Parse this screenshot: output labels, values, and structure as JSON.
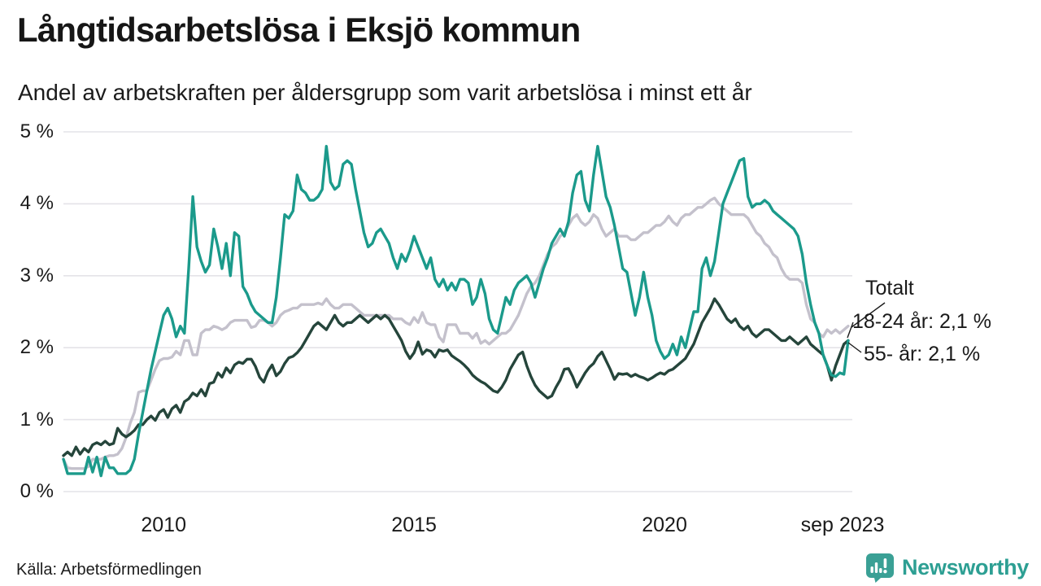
{
  "page": {
    "title": "Långtidsarbetslösa i Eksjö kommun",
    "subtitle": "Andel av arbetskraften per åldersgrupp som varit arbetslösa i minst ett år",
    "source": "Källa: Arbetsförmedlingen",
    "logo_text": "Newsworthy"
  },
  "colors": {
    "accent_teal": "#1b9a8b",
    "total_gray": "#c4c1cc",
    "older_dark": "#25453b",
    "grid": "#e4e3e8",
    "logo_teal": "#2d9f93"
  },
  "chart_data": {
    "type": "line",
    "title": "Långtidsarbetslösa i Eksjö kommun",
    "subtitle": "Andel av arbetskraften per åldersgrupp som varit arbetslösa i minst ett år",
    "x_start_year": 2008.0,
    "x_step_years": 0.08333,
    "x_end_label_year": 2023.667,
    "xlim": [
      2008.0,
      2023.75
    ],
    "ylim": [
      0,
      5
    ],
    "grid": true,
    "y_ticks": [
      "0 %",
      "1 %",
      "2 %",
      "3 %",
      "4 %",
      "5 %"
    ],
    "x_ticks": [
      {
        "label": "2010",
        "year": 2010
      },
      {
        "label": "2015",
        "year": 2015
      },
      {
        "label": "2020",
        "year": 2020
      },
      {
        "label": "sep 2023",
        "year": 2023.667
      }
    ],
    "annotations": [
      {
        "text": "Totalt",
        "series": "totalt"
      },
      {
        "text": "18-24 år: 2,1 %",
        "series": "1824"
      },
      {
        "text": "55- år: 2,1 %",
        "series": "55"
      }
    ],
    "series": [
      {
        "key": "totalt",
        "name": "Totalt",
        "color": "#c4c1cc",
        "end_value_pct": 2.3,
        "values": [
          0.45,
          0.33,
          0.32,
          0.32,
          0.32,
          0.32,
          0.35,
          0.45,
          0.45,
          0.45,
          0.48,
          0.5,
          0.5,
          0.52,
          0.6,
          0.75,
          0.95,
          1.1,
          1.38,
          1.4,
          1.4,
          1.55,
          1.7,
          1.82,
          1.85,
          1.85,
          1.87,
          1.95,
          1.9,
          2.1,
          2.1,
          1.9,
          1.9,
          2.2,
          2.25,
          2.25,
          2.3,
          2.28,
          2.25,
          2.28,
          2.35,
          2.38,
          2.38,
          2.38,
          2.38,
          2.28,
          2.3,
          2.38,
          2.38,
          2.35,
          2.3,
          2.35,
          2.45,
          2.5,
          2.52,
          2.55,
          2.55,
          2.6,
          2.6,
          2.6,
          2.6,
          2.62,
          2.6,
          2.68,
          2.6,
          2.55,
          2.55,
          2.6,
          2.6,
          2.6,
          2.55,
          2.5,
          2.45,
          2.45,
          2.45,
          2.45,
          2.45,
          2.45,
          2.45,
          2.4,
          2.4,
          2.4,
          2.35,
          2.32,
          2.42,
          2.35,
          2.49,
          2.35,
          2.32,
          2.32,
          2.15,
          2.08,
          2.32,
          2.32,
          2.32,
          2.2,
          2.2,
          2.2,
          2.13,
          2.2,
          2.06,
          2.1,
          2.05,
          2.1,
          2.15,
          2.2,
          2.2,
          2.25,
          2.35,
          2.45,
          2.6,
          2.75,
          2.85,
          2.9,
          3.0,
          3.15,
          3.3,
          3.4,
          3.45,
          3.55,
          3.6,
          3.7,
          3.8,
          3.85,
          3.75,
          3.7,
          3.75,
          3.85,
          3.8,
          3.65,
          3.55,
          3.6,
          3.65,
          3.55,
          3.55,
          3.55,
          3.5,
          3.5,
          3.55,
          3.6,
          3.6,
          3.65,
          3.7,
          3.7,
          3.75,
          3.83,
          3.75,
          3.7,
          3.8,
          3.85,
          3.85,
          3.9,
          3.95,
          3.95,
          4.0,
          4.05,
          4.08,
          4.0,
          3.95,
          3.9,
          3.85,
          3.85,
          3.85,
          3.85,
          3.8,
          3.7,
          3.6,
          3.55,
          3.45,
          3.4,
          3.3,
          3.25,
          3.1,
          3.0,
          2.95,
          2.95,
          2.95,
          2.9,
          2.6,
          2.4,
          2.35,
          2.2,
          2.15,
          2.25,
          2.2,
          2.25,
          2.2,
          2.25,
          2.3
        ]
      },
      {
        "key": "55",
        "name": "55- år",
        "color": "#25453b",
        "end_value_pct": 2.1,
        "values": [
          0.5,
          0.55,
          0.5,
          0.62,
          0.52,
          0.6,
          0.55,
          0.65,
          0.68,
          0.65,
          0.7,
          0.65,
          0.67,
          0.88,
          0.8,
          0.76,
          0.8,
          0.85,
          0.93,
          0.93,
          1.0,
          1.05,
          0.99,
          1.1,
          1.14,
          1.03,
          1.15,
          1.2,
          1.1,
          1.25,
          1.29,
          1.37,
          1.33,
          1.42,
          1.33,
          1.5,
          1.52,
          1.65,
          1.59,
          1.72,
          1.65,
          1.76,
          1.8,
          1.78,
          1.84,
          1.84,
          1.74,
          1.59,
          1.52,
          1.67,
          1.76,
          1.61,
          1.67,
          1.78,
          1.86,
          1.88,
          1.93,
          2.0,
          2.1,
          2.2,
          2.3,
          2.35,
          2.3,
          2.25,
          2.35,
          2.45,
          2.35,
          2.3,
          2.35,
          2.35,
          2.4,
          2.45,
          2.4,
          2.35,
          2.4,
          2.45,
          2.4,
          2.45,
          2.4,
          2.3,
          2.2,
          2.1,
          1.95,
          1.85,
          1.93,
          2.08,
          1.91,
          1.97,
          1.95,
          1.87,
          1.97,
          1.95,
          1.97,
          1.89,
          1.85,
          1.81,
          1.76,
          1.7,
          1.62,
          1.57,
          1.53,
          1.5,
          1.45,
          1.4,
          1.38,
          1.45,
          1.55,
          1.7,
          1.8,
          1.9,
          1.94,
          1.75,
          1.6,
          1.48,
          1.4,
          1.35,
          1.3,
          1.33,
          1.45,
          1.55,
          1.7,
          1.71,
          1.6,
          1.45,
          1.55,
          1.65,
          1.73,
          1.78,
          1.88,
          1.94,
          1.82,
          1.7,
          1.56,
          1.64,
          1.63,
          1.64,
          1.6,
          1.63,
          1.6,
          1.58,
          1.55,
          1.58,
          1.62,
          1.65,
          1.63,
          1.68,
          1.7,
          1.75,
          1.8,
          1.85,
          1.95,
          2.05,
          2.2,
          2.35,
          2.45,
          2.55,
          2.68,
          2.6,
          2.5,
          2.4,
          2.35,
          2.4,
          2.3,
          2.25,
          2.3,
          2.2,
          2.15,
          2.2,
          2.25,
          2.25,
          2.2,
          2.15,
          2.1,
          2.1,
          2.15,
          2.1,
          2.05,
          2.1,
          2.15,
          2.05,
          2.0,
          1.95,
          1.9,
          1.75,
          1.55,
          1.75,
          1.9,
          2.05,
          2.1
        ]
      },
      {
        "key": "1824",
        "name": "18-24 år",
        "color": "#1b9a8b",
        "end_value_pct": 2.1,
        "values": [
          0.45,
          0.25,
          0.25,
          0.25,
          0.25,
          0.25,
          0.48,
          0.27,
          0.48,
          0.22,
          0.48,
          0.33,
          0.33,
          0.25,
          0.25,
          0.25,
          0.3,
          0.45,
          0.8,
          1.1,
          1.4,
          1.7,
          1.95,
          2.2,
          2.45,
          2.55,
          2.4,
          2.15,
          2.3,
          2.2,
          3.1,
          4.1,
          3.4,
          3.2,
          3.05,
          3.15,
          3.65,
          3.4,
          3.1,
          3.45,
          3.0,
          3.6,
          3.55,
          2.85,
          2.75,
          2.6,
          2.5,
          2.45,
          2.4,
          2.35,
          2.35,
          2.7,
          3.25,
          3.85,
          3.8,
          3.9,
          4.4,
          4.2,
          4.15,
          4.05,
          4.05,
          4.1,
          4.2,
          4.8,
          4.3,
          4.2,
          4.25,
          4.55,
          4.6,
          4.55,
          4.2,
          3.9,
          3.6,
          3.4,
          3.45,
          3.6,
          3.65,
          3.55,
          3.45,
          3.25,
          3.1,
          3.3,
          3.2,
          3.35,
          3.55,
          3.4,
          3.25,
          3.1,
          3.25,
          2.95,
          2.85,
          2.95,
          2.8,
          2.9,
          2.8,
          2.95,
          2.95,
          2.9,
          2.6,
          2.7,
          2.95,
          2.75,
          2.4,
          2.25,
          2.2,
          2.45,
          2.7,
          2.6,
          2.8,
          2.9,
          2.95,
          3.0,
          2.9,
          2.7,
          2.9,
          3.1,
          3.25,
          3.45,
          3.55,
          3.65,
          3.55,
          3.75,
          4.15,
          4.4,
          4.45,
          4.05,
          3.9,
          4.4,
          4.8,
          4.45,
          4.1,
          3.95,
          3.7,
          3.4,
          3.1,
          3.05,
          2.75,
          2.45,
          2.7,
          3.05,
          2.7,
          2.45,
          2.1,
          1.95,
          1.85,
          1.9,
          2.05,
          1.9,
          2.15,
          2.0,
          2.25,
          2.5,
          2.5,
          3.1,
          3.25,
          3.0,
          3.2,
          3.6,
          4.0,
          4.15,
          4.3,
          4.45,
          4.6,
          4.63,
          4.1,
          3.95,
          4.0,
          4.0,
          4.05,
          4.0,
          3.9,
          3.85,
          3.8,
          3.75,
          3.7,
          3.65,
          3.55,
          3.3,
          2.9,
          2.6,
          2.35,
          2.2,
          1.9,
          1.75,
          1.62,
          1.6,
          1.65,
          1.63,
          2.1
        ]
      }
    ]
  }
}
